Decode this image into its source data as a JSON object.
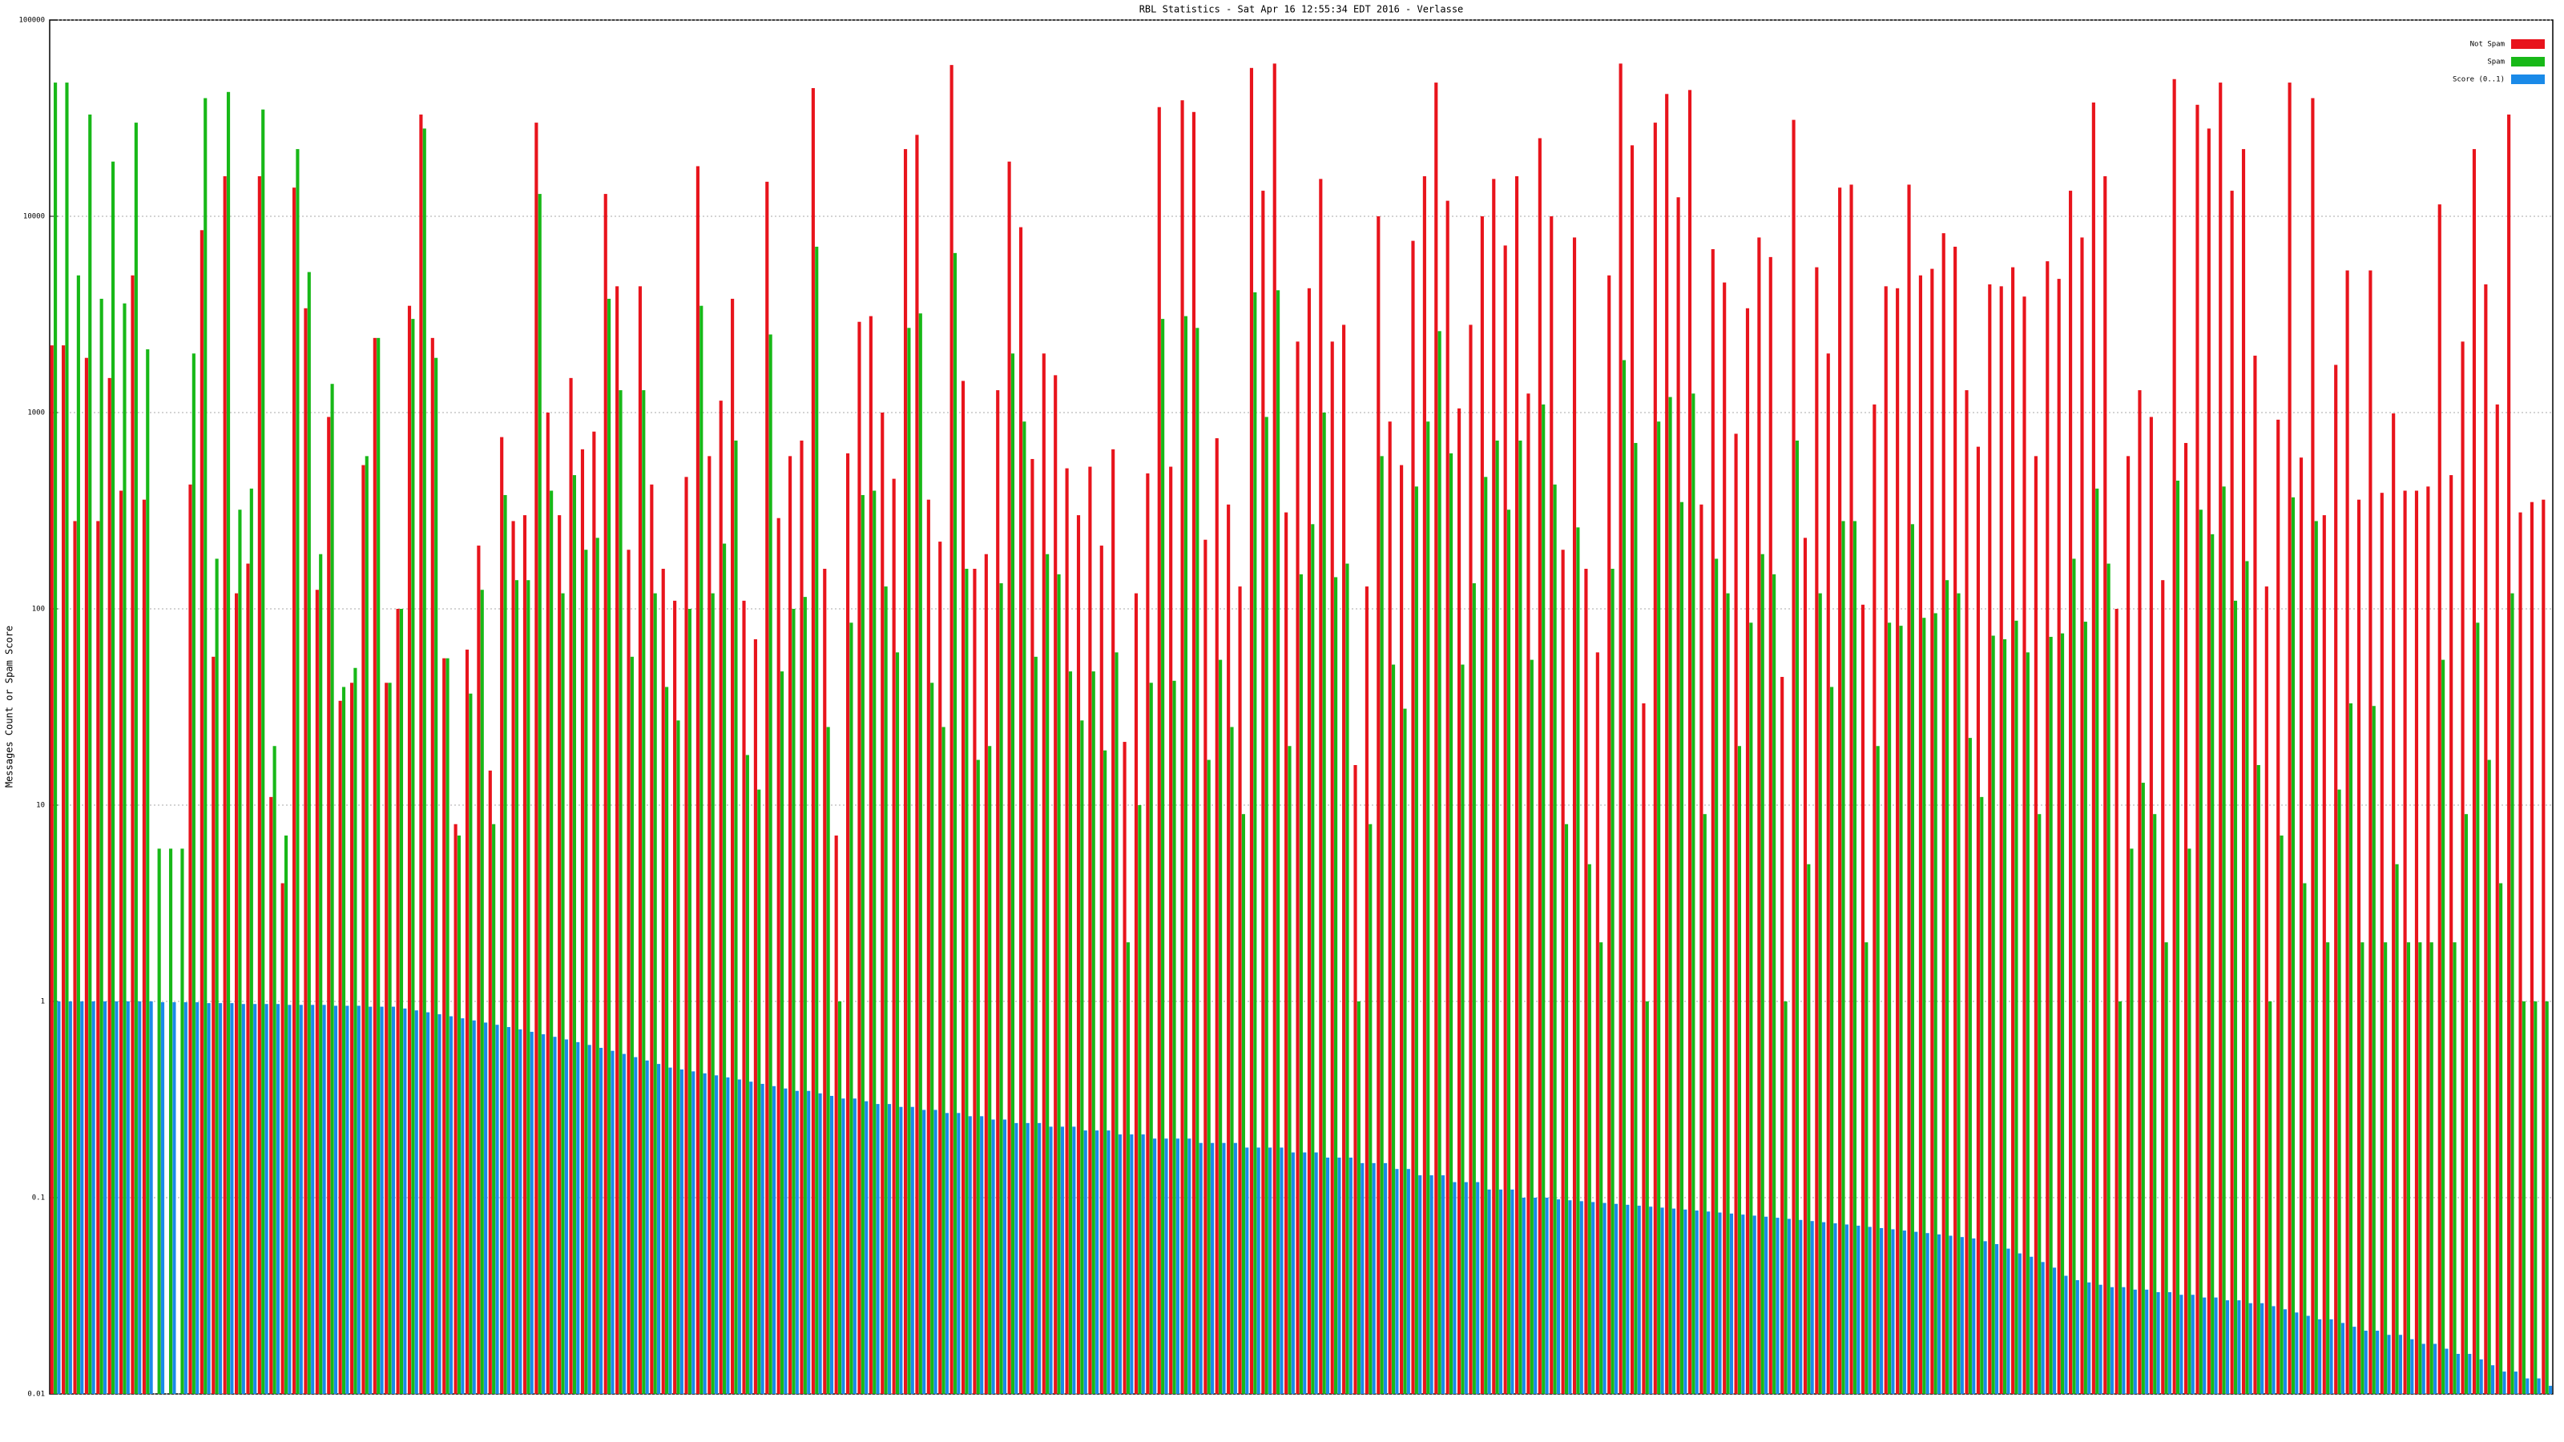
{
  "chart_data": {
    "type": "bar",
    "title": "RBL Statistics - Sat Apr 16 12:55:34 EDT 2016 - Verlasse",
    "y_label": "Messages Count or Spam Score",
    "log_scale": true,
    "grid": true,
    "legend": "top-right",
    "ylim": [
      0.01,
      100000
    ],
    "yticks": [
      0.01,
      0.1,
      1,
      10,
      100,
      1000,
      10000,
      100000
    ],
    "series": [
      {
        "name": "Not Spam",
        "color": "#e8141c",
        "values": [
          2200,
          2200,
          280,
          1900,
          280,
          1500,
          400,
          5000,
          360,
          null,
          null,
          null,
          430,
          8500,
          57,
          16000,
          120,
          170,
          16000,
          11,
          4,
          14000,
          3400,
          125,
          950,
          34,
          42,
          540,
          2400,
          42,
          100,
          3500,
          33000,
          2400,
          56,
          8,
          62,
          210,
          15,
          750,
          280,
          300,
          30000,
          1000,
          300,
          1500,
          650,
          800,
          13000,
          4400,
          200,
          4400,
          430,
          160,
          110,
          470,
          18000,
          600,
          1150,
          3800,
          110,
          70,
          15000,
          290,
          600,
          720,
          45000,
          160,
          7,
          620,
          2900,
          3100,
          1000,
          460,
          22000,
          26000,
          360,
          220,
          59000,
          1450,
          160,
          190,
          1300,
          19000,
          8800,
          580,
          2000,
          1550,
          520,
          300,
          530,
          210,
          650,
          21,
          120,
          490,
          36000,
          530,
          39000,
          34000,
          225,
          740,
          340,
          130,
          57000,
          13500,
          60000,
          310,
          2300,
          4300,
          15500,
          2300,
          2800,
          16,
          130,
          10000,
          900,
          540,
          7500,
          16000,
          48000,
          12000,
          1050,
          2800,
          10000,
          15500,
          7100,
          16000,
          1250,
          25000,
          10000,
          200,
          7800,
          160,
          60,
          5000,
          60000,
          23000,
          33,
          30000,
          42000,
          12500,
          44000,
          340,
          6800,
          4600,
          780,
          3400,
          7800,
          6200,
          45,
          31000,
          230,
          5500,
          2000,
          14000,
          14500,
          105,
          1100,
          4400,
          4300,
          14500,
          5000,
          5400,
          8200,
          7000,
          1300,
          670,
          4500,
          4400,
          5500,
          3900,
          600,
          5900,
          4800,
          13500,
          7800,
          38000,
          16000,
          100,
          600,
          1300,
          950,
          140,
          50000,
          700,
          37000,
          28000,
          48000,
          13500,
          22000,
          1950,
          130,
          920,
          48000,
          590,
          40000,
          300,
          1750,
          5300,
          360,
          5300,
          390,
          990,
          400,
          400,
          420,
          11500,
          480,
          2300,
          22000,
          4500,
          1100,
          33000,
          310,
          350,
          360
        ]
      },
      {
        "name": "Spam",
        "color": "#18b818",
        "values": [
          48000,
          48000,
          5000,
          33000,
          3800,
          19000,
          3600,
          30000,
          2100,
          6,
          6,
          6,
          2000,
          40000,
          180,
          43000,
          320,
          410,
          35000,
          20,
          7,
          22000,
          5200,
          190,
          1400,
          40,
          50,
          600,
          2400,
          42,
          100,
          3000,
          28000,
          1900,
          56,
          7,
          37,
          125,
          8,
          380,
          140,
          140,
          13000,
          400,
          120,
          480,
          200,
          230,
          3800,
          1300,
          57,
          1300,
          120,
          40,
          27,
          100,
          3500,
          120,
          215,
          720,
          18,
          12,
          2500,
          48,
          100,
          115,
          7000,
          25,
          1,
          85,
          380,
          400,
          130,
          60,
          2700,
          3200,
          42,
          25,
          6500,
          160,
          17,
          20,
          135,
          2000,
          900,
          57,
          190,
          150,
          48,
          27,
          48,
          19,
          60,
          2,
          10,
          42,
          3000,
          43,
          3100,
          2700,
          17,
          55,
          25,
          9,
          4100,
          950,
          4200,
          20,
          150,
          270,
          1000,
          145,
          170,
          1,
          8,
          600,
          52,
          31,
          420,
          900,
          2600,
          620,
          52,
          135,
          470,
          720,
          320,
          720,
          55,
          1100,
          430,
          8,
          260,
          5,
          2,
          160,
          1850,
          700,
          1,
          900,
          1200,
          350,
          1250,
          9,
          180,
          120,
          20,
          85,
          190,
          150,
          1,
          720,
          5,
          120,
          40,
          280,
          280,
          2,
          20,
          85,
          82,
          270,
          90,
          95,
          140,
          120,
          22,
          11,
          73,
          70,
          87,
          60,
          9,
          72,
          75,
          180,
          86,
          410,
          170,
          1,
          6,
          13,
          9,
          2,
          450,
          6,
          320,
          240,
          420,
          110,
          175,
          16,
          1,
          7,
          370,
          4,
          280,
          2,
          12,
          33,
          2,
          32,
          2,
          5,
          2,
          2,
          2,
          55,
          2,
          9,
          85,
          17,
          4,
          120,
          1,
          1,
          1
        ]
      },
      {
        "name": "Score (0..1)",
        "color": "#1a8ae8",
        "values": [
          1,
          1,
          1,
          1,
          1,
          1,
          1,
          1,
          1,
          0.99,
          0.99,
          0.99,
          0.99,
          0.98,
          0.98,
          0.98,
          0.97,
          0.97,
          0.97,
          0.97,
          0.96,
          0.96,
          0.96,
          0.96,
          0.95,
          0.95,
          0.95,
          0.94,
          0.94,
          0.94,
          0.92,
          0.9,
          0.88,
          0.86,
          0.84,
          0.82,
          0.8,
          0.78,
          0.76,
          0.74,
          0.72,
          0.7,
          0.68,
          0.66,
          0.64,
          0.62,
          0.6,
          0.58,
          0.56,
          0.54,
          0.52,
          0.5,
          0.48,
          0.46,
          0.45,
          0.44,
          0.43,
          0.42,
          0.41,
          0.4,
          0.39,
          0.38,
          0.37,
          0.36,
          0.35,
          0.35,
          0.34,
          0.33,
          0.32,
          0.32,
          0.31,
          0.3,
          0.3,
          0.29,
          0.29,
          0.28,
          0.28,
          0.27,
          0.27,
          0.26,
          0.26,
          0.25,
          0.25,
          0.24,
          0.24,
          0.24,
          0.23,
          0.23,
          0.23,
          0.22,
          0.22,
          0.22,
          0.21,
          0.21,
          0.21,
          0.2,
          0.2,
          0.2,
          0.2,
          0.19,
          0.19,
          0.19,
          0.19,
          0.18,
          0.18,
          0.18,
          0.18,
          0.17,
          0.17,
          0.17,
          0.16,
          0.16,
          0.16,
          0.15,
          0.15,
          0.15,
          0.14,
          0.14,
          0.13,
          0.13,
          0.13,
          0.12,
          0.12,
          0.12,
          0.11,
          0.11,
          0.11,
          0.1,
          0.1,
          0.1,
          0.098,
          0.097,
          0.096,
          0.095,
          0.094,
          0.093,
          0.092,
          0.091,
          0.09,
          0.089,
          0.088,
          0.087,
          0.086,
          0.085,
          0.084,
          0.083,
          0.082,
          0.081,
          0.08,
          0.079,
          0.078,
          0.077,
          0.076,
          0.075,
          0.074,
          0.073,
          0.072,
          0.071,
          0.07,
          0.069,
          0.068,
          0.067,
          0.066,
          0.065,
          0.064,
          0.063,
          0.062,
          0.06,
          0.058,
          0.055,
          0.052,
          0.05,
          0.047,
          0.044,
          0.04,
          0.038,
          0.037,
          0.036,
          0.035,
          0.035,
          0.034,
          0.034,
          0.033,
          0.033,
          0.032,
          0.032,
          0.031,
          0.031,
          0.03,
          0.03,
          0.029,
          0.029,
          0.028,
          0.027,
          0.026,
          0.025,
          0.024,
          0.024,
          0.023,
          0.022,
          0.021,
          0.021,
          0.02,
          0.02,
          0.019,
          0.018,
          0.018,
          0.017,
          0.016,
          0.016,
          0.015,
          0.014,
          0.013,
          0.013,
          0.012,
          0.012,
          0.011
        ]
      }
    ]
  }
}
